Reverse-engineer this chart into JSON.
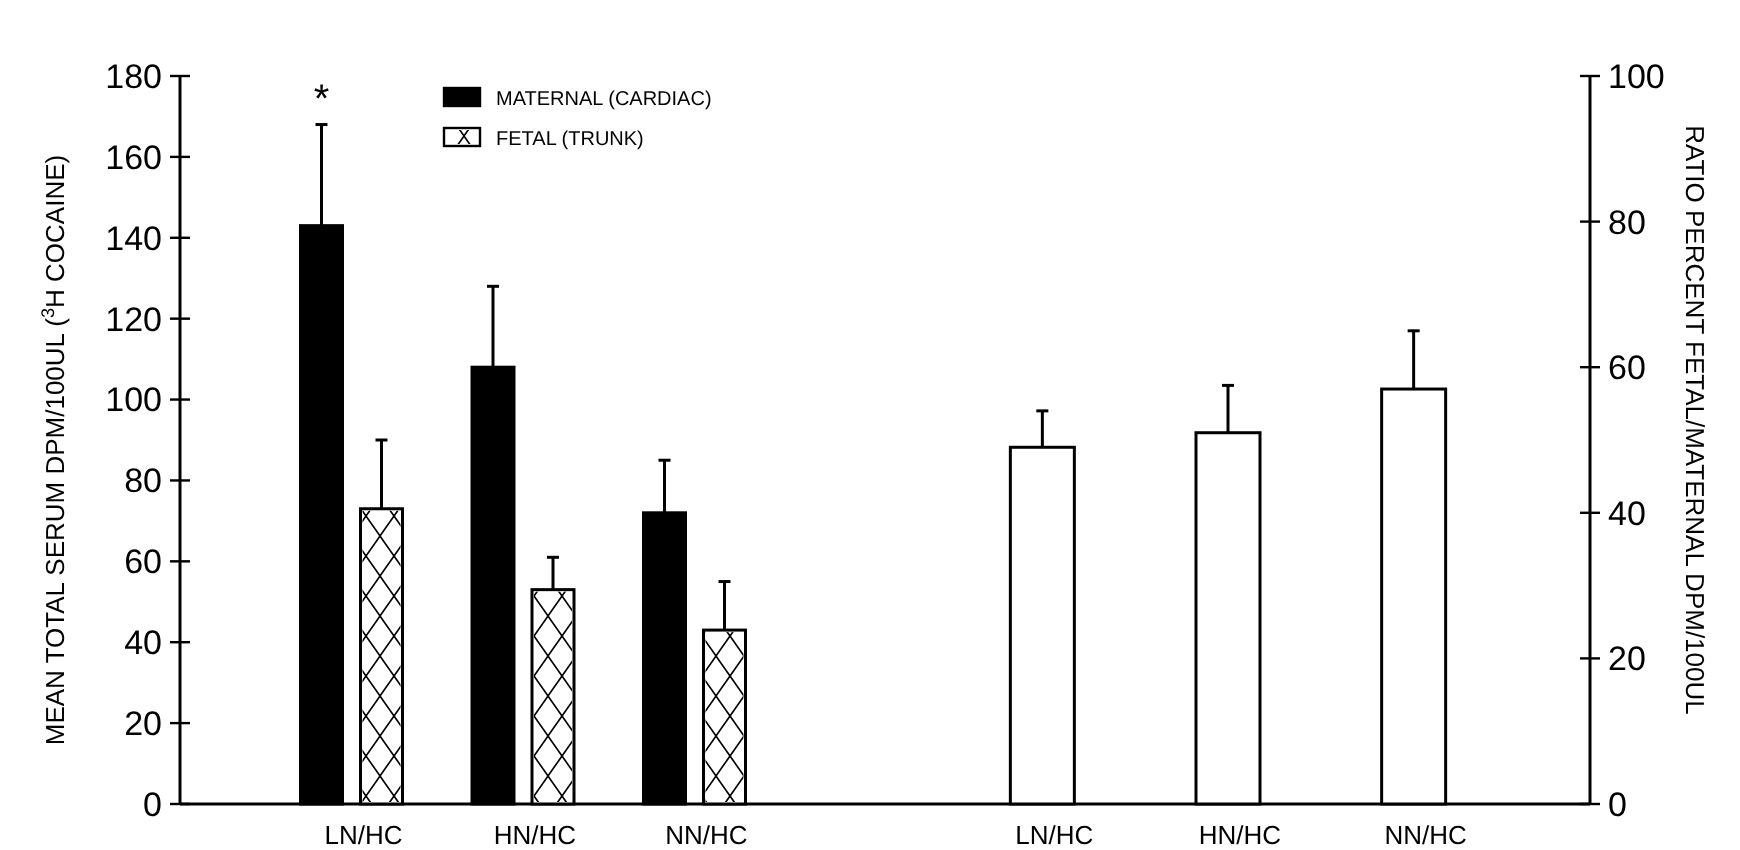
{
  "chart_data": [
    {
      "type": "bar",
      "categories": [
        "LN/HC",
        "HN/HC",
        "NN/HC"
      ],
      "ylabel": "MEAN TOTAL SERUM DPM/100UL ($^{3}$H COCAINE)",
      "ylim": [
        0,
        180
      ],
      "yticks": [
        0,
        20,
        40,
        60,
        80,
        100,
        120,
        140,
        160,
        180
      ],
      "legend": "top",
      "series": [
        {
          "name": "MATERNAL (CARDIAC)",
          "color": "#000000",
          "values": [
            143,
            108,
            72
          ],
          "errors": [
            [
              143,
              168
            ],
            [
              108,
              128
            ],
            [
              72,
              85
            ]
          ]
        },
        {
          "name": "FETAL (TRUNK)",
          "color": "#ffffff",
          "values": [
            73,
            53,
            43
          ],
          "errors": [
            [
              73,
              90
            ],
            [
              53,
              61
            ],
            [
              43,
              55
            ]
          ]
        }
      ],
      "annotations": [
        "*"
      ]
    },
    {
      "type": "bar",
      "categories": [
        "LN/HC",
        "HN/HC",
        "NN/HC"
      ],
      "y2label": "RATIO PERCENT FETAL/MATERNAL DPM/100UL",
      "y2lim": [
        0,
        100
      ],
      "y2ticks": [
        0,
        20,
        40,
        60,
        80,
        100
      ],
      "series": [
        {
          "axis": "y2",
          "color": "#ffffff",
          "values": [
            49,
            51,
            57
          ],
          "errors": [
            [
              49,
              54
            ],
            [
              51,
              57.5
            ],
            [
              57,
              65
            ]
          ]
        }
      ]
    }
  ]
}
